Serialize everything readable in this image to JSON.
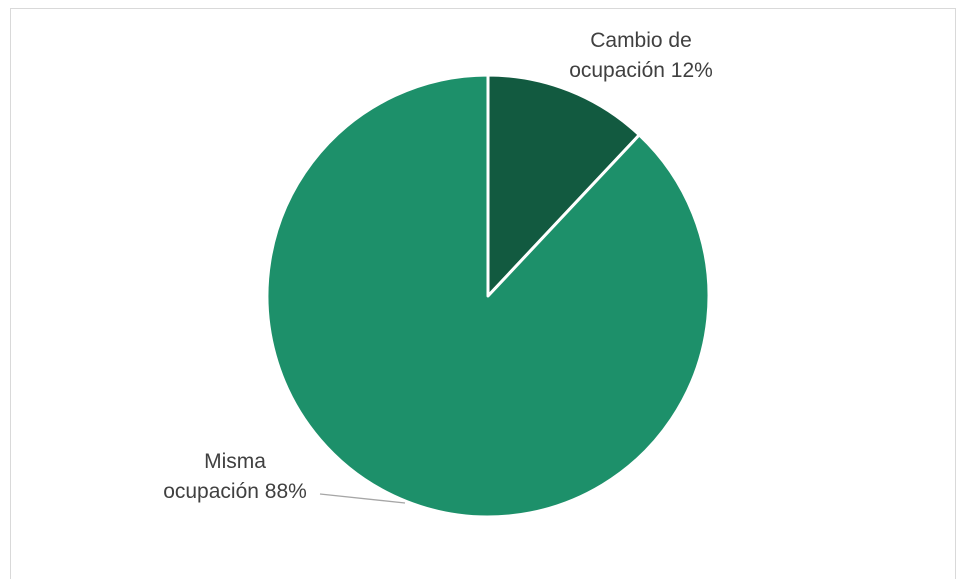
{
  "chart_data": {
    "type": "pie",
    "title": "",
    "slices": [
      {
        "label_line1": "Cambio de",
        "label_line2": "ocupación 12%",
        "value": 12,
        "color": "#125a40"
      },
      {
        "label_line1": "Misma",
        "label_line2": "ocupación 88%",
        "value": 88,
        "color": "#1d906a"
      }
    ],
    "start_angle_deg": 0,
    "direction": "clockwise"
  }
}
